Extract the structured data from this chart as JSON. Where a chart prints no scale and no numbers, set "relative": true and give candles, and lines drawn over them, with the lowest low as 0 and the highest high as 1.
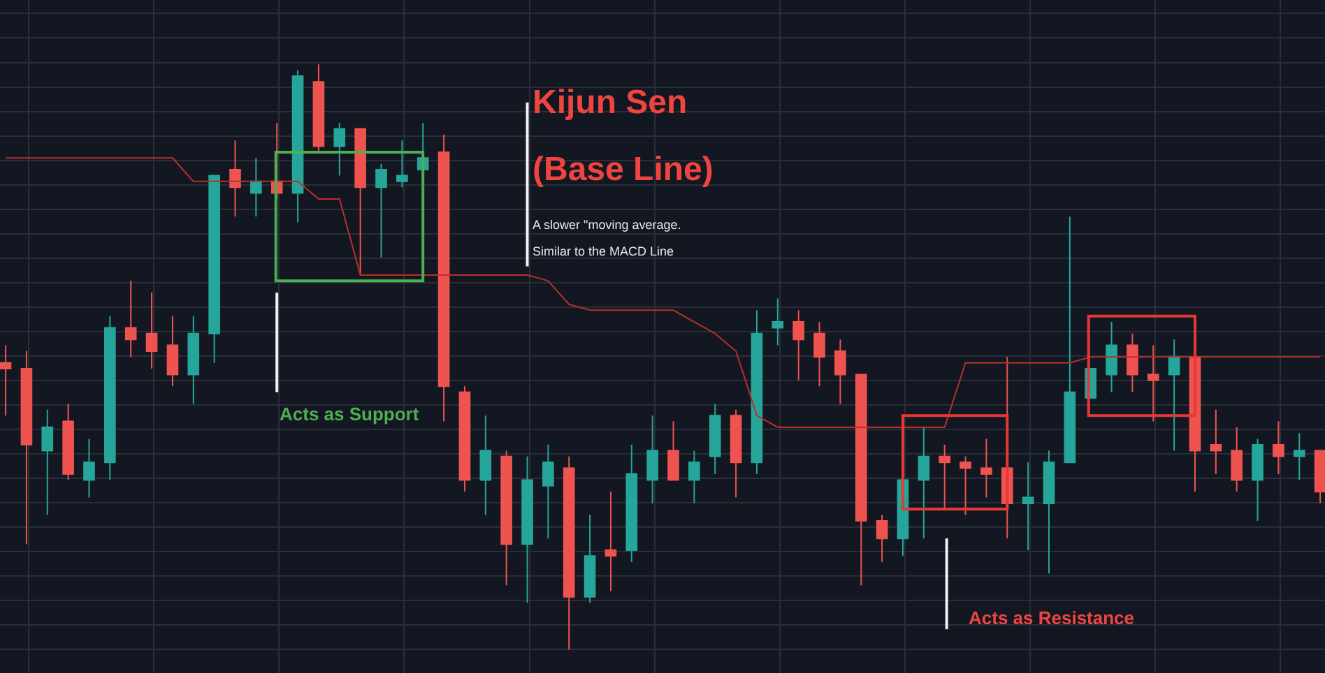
{
  "chart_data": {
    "type": "candlestick",
    "relative": true,
    "grid": true,
    "categories": [
      null,
      null,
      null,
      null,
      null,
      null,
      null,
      null,
      null,
      null,
      null,
      null,
      null,
      null,
      null,
      null,
      null,
      null,
      null,
      null,
      null,
      null,
      null,
      null,
      null,
      null,
      null,
      null,
      null,
      null,
      null,
      null,
      null,
      null,
      null,
      null,
      null,
      null,
      null,
      null,
      null,
      null,
      null,
      null,
      null,
      null,
      null,
      null,
      null,
      null,
      null,
      null,
      null,
      null,
      null,
      null,
      null,
      null,
      null,
      null,
      null,
      null,
      null,
      null
    ],
    "ohlc": [
      [
        0.49,
        0.52,
        0.4,
        0.48
      ],
      [
        0.48,
        0.51,
        0.18,
        0.35
      ],
      [
        0.34,
        0.41,
        0.23,
        0.38
      ],
      [
        0.39,
        0.42,
        0.29,
        0.3
      ],
      [
        0.29,
        0.36,
        0.26,
        0.32
      ],
      [
        0.32,
        0.57,
        0.29,
        0.55
      ],
      [
        0.55,
        0.63,
        0.5,
        0.53
      ],
      [
        0.54,
        0.61,
        0.48,
        0.51
      ],
      [
        0.52,
        0.57,
        0.45,
        0.47
      ],
      [
        0.47,
        0.57,
        0.42,
        0.54
      ],
      [
        0.54,
        0.81,
        0.49,
        0.81
      ],
      [
        0.82,
        0.87,
        0.74,
        0.79
      ],
      [
        0.78,
        0.84,
        0.74,
        0.8
      ],
      [
        0.8,
        0.9,
        0.77,
        0.78
      ],
      [
        0.78,
        0.99,
        0.73,
        0.98
      ],
      [
        0.97,
        1.0,
        0.85,
        0.86
      ],
      [
        0.86,
        0.9,
        0.81,
        0.89
      ],
      [
        0.89,
        0.89,
        0.64,
        0.79
      ],
      [
        0.79,
        0.83,
        0.67,
        0.82
      ],
      [
        0.8,
        0.87,
        0.79,
        0.81
      ],
      [
        0.82,
        0.9,
        0.82,
        0.84
      ],
      [
        0.85,
        0.88,
        0.39,
        0.45
      ],
      [
        0.44,
        0.45,
        0.27,
        0.29
      ],
      [
        0.29,
        0.4,
        0.23,
        0.34
      ],
      [
        0.33,
        0.34,
        0.11,
        0.18
      ],
      [
        0.18,
        0.33,
        0.08,
        0.29
      ],
      [
        0.28,
        0.35,
        0.19,
        0.32
      ],
      [
        0.31,
        0.33,
        0,
        0.09
      ],
      [
        0.09,
        0.23,
        0.08,
        0.16
      ],
      [
        0.17,
        0.27,
        0.1,
        0.16
      ],
      [
        0.17,
        0.35,
        0.15,
        0.3
      ],
      [
        0.29,
        0.4,
        0.25,
        0.34
      ],
      [
        0.34,
        0.39,
        0.29,
        0.29
      ],
      [
        0.29,
        0.34,
        0.25,
        0.32
      ],
      [
        0.33,
        0.42,
        0.3,
        0.4
      ],
      [
        0.4,
        0.41,
        0.26,
        0.32
      ],
      [
        0.32,
        0.58,
        0.3,
        0.54
      ],
      [
        0.55,
        0.6,
        0.52,
        0.56
      ],
      [
        0.56,
        0.58,
        0.46,
        0.53
      ],
      [
        0.54,
        0.56,
        0.45,
        0.5
      ],
      [
        0.51,
        0.53,
        0.42,
        0.47
      ],
      [
        0.47,
        0.47,
        0.11,
        0.22
      ],
      [
        0.22,
        0.23,
        0.15,
        0.19
      ],
      [
        0.19,
        0.29,
        0.16,
        0.29
      ],
      [
        0.29,
        0.38,
        0.19,
        0.33
      ],
      [
        0.33,
        0.35,
        0.24,
        0.32
      ],
      [
        0.32,
        0.33,
        0.23,
        0.31
      ],
      [
        0.31,
        0.36,
        0.26,
        0.3
      ],
      [
        0.31,
        0.5,
        0.19,
        0.25
      ],
      [
        0.25,
        0.32,
        0.17,
        0.26
      ],
      [
        0.25,
        0.34,
        0.13,
        0.32
      ],
      [
        0.32,
        0.74,
        0.32,
        0.44
      ],
      [
        0.43,
        0.48,
        0.43,
        0.48
      ],
      [
        0.47,
        0.56,
        0.44,
        0.52
      ],
      [
        0.52,
        0.54,
        0.44,
        0.47
      ],
      [
        0.47,
        0.52,
        0.39,
        0.46
      ],
      [
        0.47,
        0.53,
        0.34,
        0.5
      ],
      [
        0.5,
        0.5,
        0.27,
        0.34
      ],
      [
        0.35,
        0.41,
        0.3,
        0.34
      ],
      [
        0.34,
        0.38,
        0.27,
        0.29
      ],
      [
        0.29,
        0.36,
        0.22,
        0.35
      ],
      [
        0.35,
        0.39,
        0.3,
        0.33
      ],
      [
        0.33,
        0.37,
        0.29,
        0.34
      ],
      [
        0.34,
        0.34,
        0.25,
        0.27
      ]
    ],
    "colors": [
      "#ef5350",
      "#ef5350",
      "#26a69a",
      "#ef5350",
      "#26a69a",
      "#26a69a",
      "#ef5350",
      "#ef5350",
      "#ef5350",
      "#26a69a",
      "#26a69a",
      "#ef5350",
      "#26a69a",
      "#ef5350",
      "#26a69a",
      "#ef5350",
      "#26a69a",
      "#ef5350",
      "#26a69a",
      "#26a69a",
      "#26a69a",
      "#ef5350",
      "#ef5350",
      "#26a69a",
      "#ef5350",
      "#26a69a",
      "#26a69a",
      "#ef5350",
      "#26a69a",
      "#ef5350",
      "#26a69a",
      "#26a69a",
      "#ef5350",
      "#26a69a",
      "#26a69a",
      "#ef5350",
      "#26a69a",
      "#26a69a",
      "#ef5350",
      "#ef5350",
      "#ef5350",
      "#ef5350",
      "#ef5350",
      "#26a69a",
      "#26a69a",
      "#ef5350",
      "#ef5350",
      "#ef5350",
      "#ef5350",
      "#26a69a",
      "#26a69a",
      "#26a69a",
      "#26a69a",
      "#26a69a",
      "#ef5350",
      "#ef5350",
      "#26a69a",
      "#ef5350",
      "#ef5350",
      "#ef5350",
      "#26a69a",
      "#ef5350",
      "#26a69a",
      "#ef5350"
    ],
    "series": [
      {
        "type": "line",
        "color": "#b8302c",
        "values": [
          0.84,
          0.84,
          0.84,
          0.84,
          0.84,
          0.84,
          0.84,
          0.84,
          0.84,
          0.8,
          0.8,
          0.8,
          0.8,
          0.8,
          0.8,
          0.77,
          0.77,
          0.64,
          0.64,
          0.64,
          0.64,
          0.64,
          0.64,
          0.64,
          0.64,
          0.64,
          0.63,
          0.59,
          0.58,
          0.58,
          0.58,
          0.58,
          0.58,
          0.56,
          0.54,
          0.51,
          0.4,
          0.38,
          0.38,
          0.38,
          0.38,
          0.38,
          0.38,
          0.38,
          0.38,
          0.38,
          0.49,
          0.49,
          0.49,
          0.49,
          0.49,
          0.49,
          0.5,
          0.5,
          0.5,
          0.5,
          0.5,
          0.5,
          0.5,
          0.5,
          0.5,
          0.5,
          0.5,
          0.5
        ]
      }
    ],
    "annotations": [
      "Kijun Sen",
      "(Base Line)",
      "A slower \"moving average.",
      "Similar to the MACD Line",
      "Acts as Support",
      "Acts as Resistance"
    ]
  }
}
